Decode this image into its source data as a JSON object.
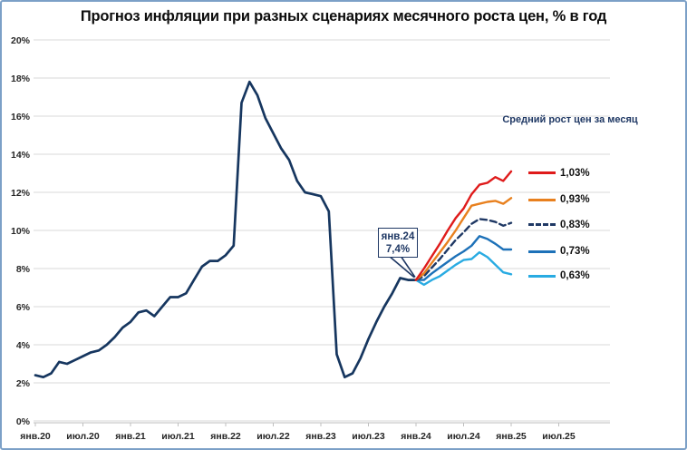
{
  "title": "Прогноз инфляции при разных сценариях месячного роста цен, % в год",
  "legend": {
    "header": "Средний рост цен за месяц",
    "items": [
      {
        "label": "1,03%",
        "color": "#df1b1b",
        "dash": false
      },
      {
        "label": "0,93%",
        "color": "#e8801e",
        "dash": false
      },
      {
        "label": "0,83%",
        "color": "#1f3864",
        "dash": true
      },
      {
        "label": "0,73%",
        "color": "#1d71b8",
        "dash": false
      },
      {
        "label": "0,63%",
        "color": "#29abe2",
        "dash": false
      }
    ]
  },
  "annotation": {
    "line1": "янв.24",
    "line2": "7,4%"
  },
  "chart_data": {
    "type": "line",
    "title": "Прогноз инфляции при разных сценариях месячного роста цен, % в год",
    "ylabel": "% в год",
    "ylim": [
      0,
      20
    ],
    "y_tick_step": 2,
    "y_tick_labels": [
      "0%",
      "2%",
      "4%",
      "6%",
      "8%",
      "10%",
      "12%",
      "14%",
      "16%",
      "18%",
      "20%"
    ],
    "x_tick_labels": [
      "янв.20",
      "июл.20",
      "янв.21",
      "июл.21",
      "янв.22",
      "июл.22",
      "янв.23",
      "июл.23",
      "янв.24",
      "июл.24",
      "янв.25",
      "июл.25"
    ],
    "grid": true,
    "legend_position": "right",
    "history": {
      "color": "#16365f",
      "start_index": 0,
      "values": [
        2.4,
        2.3,
        2.5,
        3.1,
        3.0,
        3.2,
        3.4,
        3.6,
        3.7,
        4.0,
        4.4,
        4.9,
        5.2,
        5.7,
        5.8,
        5.5,
        6.0,
        6.5,
        6.5,
        6.7,
        7.4,
        8.1,
        8.4,
        8.4,
        8.7,
        9.2,
        16.7,
        17.8,
        17.1,
        15.9,
        15.1,
        14.3,
        13.7,
        12.6,
        12.0,
        11.9,
        11.8,
        11.0,
        3.5,
        2.3,
        2.5,
        3.3,
        4.3,
        5.2,
        6.0,
        6.7,
        7.5,
        7.4,
        7.4
      ]
    },
    "forecast_series": [
      {
        "name": "1,03%",
        "color": "#df1b1b",
        "dash": false,
        "start_index": 48,
        "values": [
          7.4,
          8.0,
          8.65,
          9.3,
          10.0,
          10.65,
          11.15,
          11.9,
          12.4,
          12.5,
          12.8,
          12.6,
          13.1
        ]
      },
      {
        "name": "0,93%",
        "color": "#e8801e",
        "dash": false,
        "start_index": 48,
        "values": [
          7.4,
          7.75,
          8.3,
          8.85,
          9.4,
          10.0,
          10.65,
          11.3,
          11.4,
          11.5,
          11.55,
          11.4,
          11.7
        ]
      },
      {
        "name": "0,83%",
        "color": "#1f3864",
        "dash": true,
        "start_index": 48,
        "values": [
          7.4,
          7.6,
          8.05,
          8.5,
          9.0,
          9.5,
          9.9,
          10.35,
          10.6,
          10.55,
          10.45,
          10.25,
          10.4
        ]
      },
      {
        "name": "0,73%",
        "color": "#1d71b8",
        "dash": false,
        "start_index": 48,
        "values": [
          7.4,
          7.4,
          7.75,
          8.05,
          8.35,
          8.65,
          8.9,
          9.2,
          9.7,
          9.55,
          9.3,
          9.0,
          9.0
        ]
      },
      {
        "name": "0,63%",
        "color": "#29abe2",
        "dash": false,
        "start_index": 48,
        "values": [
          7.4,
          7.15,
          7.4,
          7.6,
          7.9,
          8.2,
          8.45,
          8.5,
          8.85,
          8.6,
          8.2,
          7.8,
          7.7
        ]
      }
    ],
    "annotation": {
      "label": "янв.24",
      "value": "7,4%",
      "anchor_index": 48,
      "anchor_value": 7.4
    }
  }
}
